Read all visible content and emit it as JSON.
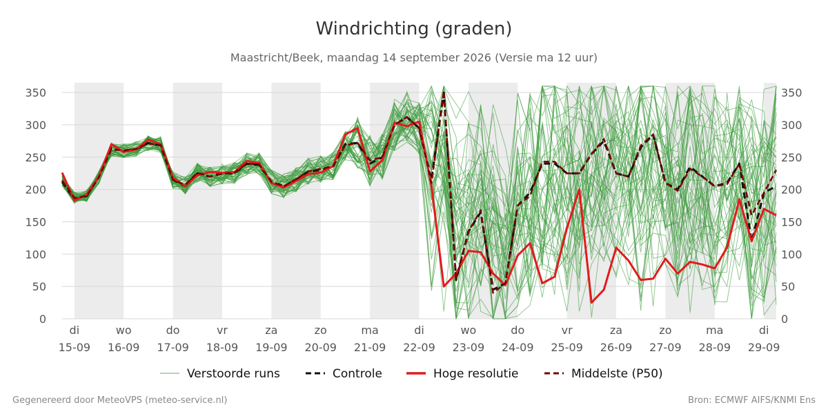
{
  "chart_data": {
    "type": "line",
    "title": "Windrichting (graden)",
    "subtitle": "Maastricht/Beek, maandag 14 september 2026 (Versie ma 12 uur)",
    "footer_left": "Gegenereerd door MeteoVPS (meteo-service.nl)",
    "footer_right": "Bron: ECMWF AIFS/KNMI Ens",
    "ylim": [
      0,
      365
    ],
    "yticks": [
      0,
      50,
      100,
      150,
      200,
      250,
      300,
      350
    ],
    "xlim": [
      -0.25,
      14.25
    ],
    "x_unit": "days from 15-09 00:00",
    "xticks": [
      {
        "day": "di",
        "date": "15-09"
      },
      {
        "day": "wo",
        "date": "16-09"
      },
      {
        "day": "do",
        "date": "17-09"
      },
      {
        "day": "vr",
        "date": "18-09"
      },
      {
        "day": "za",
        "date": "19-09"
      },
      {
        "day": "zo",
        "date": "20-09"
      },
      {
        "day": "ma",
        "date": "21-09"
      },
      {
        "day": "di",
        "date": "22-09"
      },
      {
        "day": "wo",
        "date": "23-09"
      },
      {
        "day": "do",
        "date": "24-09"
      },
      {
        "day": "vr",
        "date": "25-09"
      },
      {
        "day": "za",
        "date": "26-09"
      },
      {
        "day": "zo",
        "date": "27-09"
      },
      {
        "day": "ma",
        "date": "28-09"
      },
      {
        "day": "di",
        "date": "29-09"
      }
    ],
    "shaded_days": [
      [
        0,
        1
      ],
      [
        2,
        3
      ],
      [
        4,
        5
      ],
      [
        6,
        7
      ],
      [
        8,
        9
      ],
      [
        10,
        11
      ],
      [
        12,
        13
      ],
      [
        14,
        14.25
      ]
    ],
    "grid": true,
    "legend_position": "bottom",
    "legend": [
      {
        "label": "Verstoorde runs",
        "color": "#3a9a3a",
        "style": "thin-solid"
      },
      {
        "label": "Controle",
        "color": "#111111",
        "style": "dashed"
      },
      {
        "label": "Hoge resolutie",
        "color": "#e31a1c",
        "style": "solid"
      },
      {
        "label": "Middelste (P50)",
        "color": "#7a0000",
        "style": "dashed"
      }
    ],
    "series": [
      {
        "name": "Controle",
        "x": [
          -0.25,
          0,
          0.25,
          0.5,
          0.75,
          1,
          1.25,
          1.5,
          1.75,
          2,
          2.25,
          2.5,
          2.75,
          3,
          3.25,
          3.5,
          3.75,
          4,
          4.25,
          4.5,
          4.75,
          5,
          5.25,
          5.5,
          5.75,
          6,
          6.25,
          6.5,
          6.75,
          7,
          7.25,
          7.5,
          7.75,
          8,
          8.25,
          8.5,
          8.75,
          9,
          9.25,
          9.5,
          9.75,
          10,
          10.25,
          10.5,
          10.75,
          11,
          11.25,
          11.5,
          11.75,
          12,
          12.25,
          12.5,
          12.75,
          13,
          13.25,
          13.5,
          13.75,
          14,
          14.25
        ],
        "y": [
          212,
          185,
          190,
          220,
          265,
          260,
          262,
          272,
          268,
          215,
          205,
          225,
          220,
          225,
          225,
          240,
          238,
          212,
          205,
          215,
          228,
          230,
          235,
          270,
          272,
          240,
          250,
          300,
          312,
          295,
          215,
          350,
          60,
          135,
          165,
          45,
          55,
          175,
          195,
          240,
          240,
          225,
          225,
          255,
          275,
          225,
          220,
          265,
          285,
          210,
          200,
          235,
          220,
          205,
          210,
          240,
          120,
          195,
          205
        ]
      },
      {
        "name": "Hoge resolutie",
        "x": [
          -0.25,
          0,
          0.25,
          0.5,
          0.75,
          1,
          1.25,
          1.5,
          1.75,
          2,
          2.25,
          2.5,
          2.75,
          3,
          3.25,
          3.5,
          3.75,
          4,
          4.25,
          4.5,
          4.75,
          5,
          5.25,
          5.5,
          5.75,
          6,
          6.25,
          6.5,
          6.75,
          7,
          7.25,
          7.5,
          7.75,
          8,
          8.25,
          8.5,
          8.75,
          9,
          9.25,
          9.5,
          9.75,
          10,
          10.25,
          10.5,
          10.75,
          11,
          11.25,
          11.5,
          11.75,
          12,
          12.25,
          12.5,
          12.75,
          13,
          13.25,
          13.5,
          13.75,
          14,
          14.25
        ],
        "y": [
          226,
          183,
          192,
          220,
          270,
          258,
          262,
          277,
          270,
          218,
          205,
          222,
          227,
          226,
          227,
          244,
          241,
          210,
          203,
          213,
          224,
          226,
          236,
          285,
          295,
          228,
          245,
          303,
          298,
          305,
          205,
          50,
          70,
          105,
          103,
          70,
          52,
          98,
          117,
          55,
          65,
          140,
          200,
          25,
          45,
          110,
          90,
          60,
          62,
          93,
          70,
          88,
          84,
          78,
          110,
          185,
          120,
          170,
          160
        ]
      },
      {
        "name": "Middelste (P50)",
        "x": [
          -0.25,
          0,
          0.25,
          0.5,
          0.75,
          1,
          1.25,
          1.5,
          1.75,
          2,
          2.25,
          2.5,
          2.75,
          3,
          3.25,
          3.5,
          3.75,
          4,
          4.25,
          4.5,
          4.75,
          5,
          5.25,
          5.5,
          5.75,
          6,
          6.25,
          6.5,
          6.75,
          7,
          7.25,
          7.5,
          7.75,
          8,
          8.25,
          8.5,
          8.75,
          9,
          9.25,
          9.5,
          9.75,
          10,
          10.25,
          10.5,
          10.75,
          11,
          11.25,
          11.5,
          11.75,
          12,
          12.25,
          12.5,
          12.75,
          13,
          13.25,
          13.5,
          13.75,
          14,
          14.25
        ],
        "y": [
          214,
          187,
          190,
          219,
          262,
          260,
          263,
          271,
          269,
          215,
          207,
          226,
          220,
          224,
          226,
          240,
          239,
          212,
          205,
          216,
          228,
          232,
          236,
          268,
          272,
          245,
          250,
          300,
          312,
          295,
          210,
          352,
          60,
          135,
          168,
          40,
          55,
          175,
          190,
          243,
          243,
          225,
          225,
          255,
          278,
          225,
          220,
          268,
          285,
          210,
          198,
          232,
          220,
          205,
          208,
          240,
          160,
          195,
          230
        ]
      }
    ]
  }
}
